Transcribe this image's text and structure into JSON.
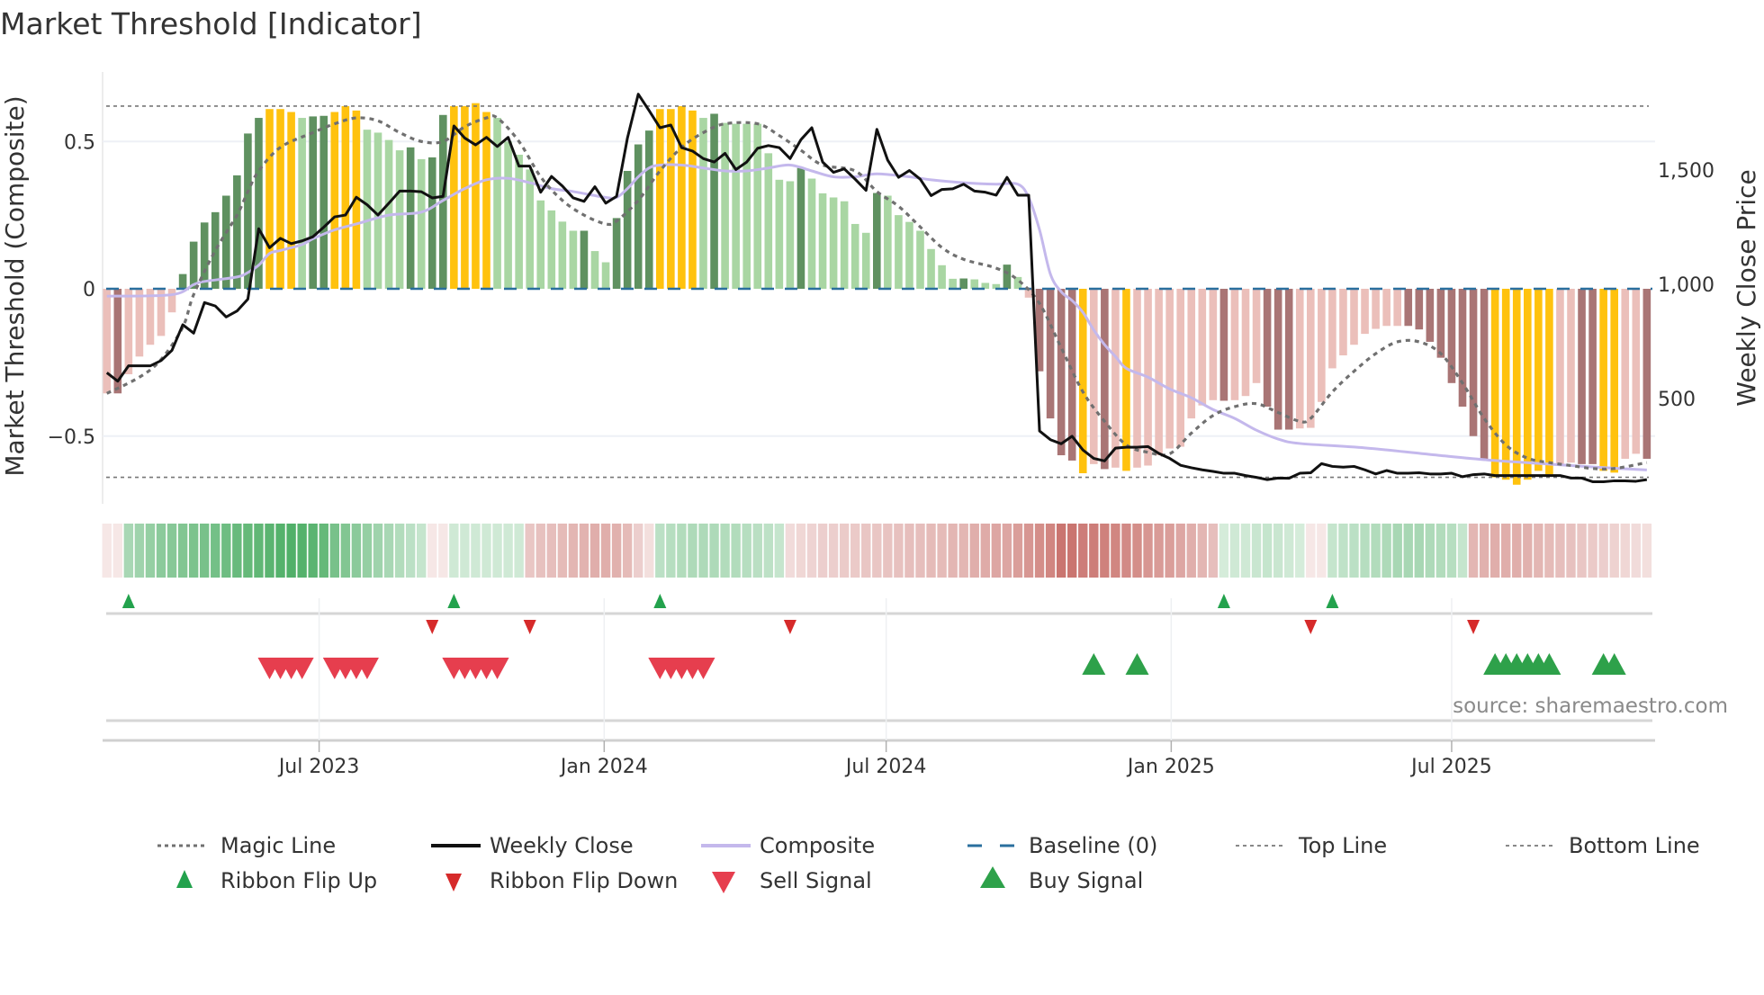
{
  "chart_data": {
    "type": "bar",
    "title": "Market Threshold [Indicator]",
    "ylabel": "Market Threshold (Composite)",
    "y2label": "Weekly Close Price",
    "ylim": [
      -0.74,
      0.74
    ],
    "y2lim": [
      0,
      2000
    ],
    "yticks": [
      {
        "v": 0.5,
        "label": "0.5"
      },
      {
        "v": 0,
        "label": "0"
      },
      {
        "v": -0.5,
        "label": "−0.5"
      }
    ],
    "y2ticks": [
      {
        "v": 1500,
        "label": "1,500"
      },
      {
        "v": 1000,
        "label": "1,000"
      },
      {
        "v": 500,
        "label": "500"
      }
    ],
    "start_date": "2023-02-14",
    "frequency": "weekly",
    "xticks": [
      {
        "date": "2023-07-01",
        "label": "Jul 2023"
      },
      {
        "date": "2024-01-01",
        "label": "Jan 2024"
      },
      {
        "date": "2024-07-01",
        "label": "Jul 2024"
      },
      {
        "date": "2025-01-01",
        "label": "Jan 2025"
      },
      {
        "date": "2025-07-01",
        "label": "Jul 2025"
      }
    ],
    "top_line": 0.62,
    "bottom_line": -0.64,
    "baseline": 0,
    "composite_bars": [
      -0.355,
      -0.355,
      -0.29,
      -0.23,
      -0.19,
      -0.16,
      -0.08,
      0.05,
      0.16,
      0.225,
      0.26,
      0.316,
      0.385,
      0.527,
      0.58,
      0.61,
      0.61,
      0.6,
      0.58,
      0.585,
      0.587,
      0.6,
      0.62,
      0.605,
      0.54,
      0.53,
      0.505,
      0.47,
      0.48,
      0.44,
      0.446,
      0.59,
      0.62,
      0.62,
      0.63,
      0.6,
      0.58,
      0.5,
      0.455,
      0.405,
      0.3,
      0.266,
      0.228,
      0.197,
      0.197,
      0.128,
      0.09,
      0.24,
      0.4,
      0.49,
      0.537,
      0.61,
      0.61,
      0.62,
      0.605,
      0.58,
      0.594,
      0.563,
      0.56,
      0.56,
      0.56,
      0.46,
      0.37,
      0.365,
      0.41,
      0.374,
      0.324,
      0.31,
      0.297,
      0.22,
      0.19,
      0.325,
      0.316,
      0.25,
      0.227,
      0.197,
      0.135,
      0.08,
      0.034,
      0.035,
      0.032,
      0.02,
      0.016,
      0.082,
      0.04,
      -0.03,
      -0.28,
      -0.44,
      -0.565,
      -0.583,
      -0.626,
      -0.595,
      -0.612,
      -0.607,
      -0.618,
      -0.607,
      -0.6,
      -0.565,
      -0.542,
      -0.536,
      -0.44,
      -0.396,
      -0.378,
      -0.38,
      -0.378,
      -0.364,
      -0.32,
      -0.4,
      -0.478,
      -0.478,
      -0.474,
      -0.472,
      -0.384,
      -0.27,
      -0.226,
      -0.19,
      -0.153,
      -0.136,
      -0.126,
      -0.126,
      -0.126,
      -0.138,
      -0.18,
      -0.234,
      -0.32,
      -0.4,
      -0.5,
      -0.583,
      -0.64,
      -0.648,
      -0.665,
      -0.648,
      -0.618,
      -0.63,
      -0.595,
      -0.59,
      -0.595,
      -0.595,
      -0.618,
      -0.624,
      -0.577,
      -0.56,
      -0.577
    ],
    "bar_class": [
      "p",
      "dr",
      "p",
      "p",
      "p",
      "p",
      "p",
      "dg",
      "dg",
      "dg",
      "dg",
      "dg",
      "dg",
      "dg",
      "dg",
      "y",
      "y",
      "y",
      "lg",
      "dg",
      "dg",
      "y",
      "y",
      "y",
      "lg",
      "lg",
      "lg",
      "lg",
      "dg",
      "lg",
      "dg",
      "dg",
      "y",
      "y",
      "y",
      "y",
      "lg",
      "lg",
      "lg",
      "lg",
      "lg",
      "lg",
      "lg",
      "lg",
      "dg",
      "lg",
      "lg",
      "dg",
      "dg",
      "dg",
      "dg",
      "y",
      "y",
      "y",
      "y",
      "lg",
      "dg",
      "lg",
      "lg",
      "lg",
      "lg",
      "lg",
      "lg",
      "lg",
      "dg",
      "lg",
      "lg",
      "lg",
      "lg",
      "lg",
      "lg",
      "dg",
      "lg",
      "lg",
      "lg",
      "lg",
      "lg",
      "lg",
      "lg",
      "dg",
      "lg",
      "lg",
      "lg",
      "dg",
      "lg",
      "p",
      "dr",
      "dr",
      "dr",
      "dr",
      "y",
      "p",
      "dr",
      "p",
      "y",
      "p",
      "p",
      "p",
      "p",
      "p",
      "p",
      "p",
      "p",
      "dr",
      "p",
      "p",
      "p",
      "dr",
      "dr",
      "dr",
      "p",
      "p",
      "p",
      "p",
      "p",
      "p",
      "p",
      "p",
      "p",
      "p",
      "dr",
      "dr",
      "dr",
      "dr",
      "dr",
      "dr",
      "dr",
      "dr",
      "y",
      "y",
      "y",
      "y",
      "y",
      "y",
      "p",
      "p",
      "dr",
      "dr",
      "y",
      "y",
      "p",
      "p",
      "dr"
    ],
    "bar_colors": {
      "dg": "#5f9160",
      "lg": "#a9d6a3",
      "y": "#ffc20e",
      "p": "#ebbfba",
      "dr": "#a97575"
    },
    "weekly_close": [
      613,
      576,
      643,
      643,
      643,
      666,
      711,
      823,
      786,
      920,
      905,
      857,
      883,
      935,
      1243,
      1160,
      1201,
      1178,
      1190,
      1208,
      1250,
      1295,
      1303,
      1381,
      1348,
      1303,
      1355,
      1408,
      1408,
      1405,
      1378,
      1385,
      1693,
      1640,
      1610,
      1643,
      1603,
      1643,
      1517,
      1517,
      1403,
      1472,
      1430,
      1378,
      1363,
      1427,
      1355,
      1385,
      1640,
      1832,
      1760,
      1685,
      1697,
      1598,
      1583,
      1550,
      1535,
      1573,
      1502,
      1535,
      1595,
      1607,
      1598,
      1550,
      1633,
      1685,
      1535,
      1490,
      1505,
      1460,
      1411,
      1678,
      1543,
      1468,
      1498,
      1460,
      1388,
      1415,
      1418,
      1438,
      1408,
      1403,
      1390,
      1468,
      1390,
      1390,
      358,
      320,
      302,
      335,
      275,
      238,
      227,
      283,
      287,
      287,
      290,
      260,
      238,
      208,
      197,
      188,
      181,
      173,
      173,
      163,
      155,
      145,
      152,
      151,
      173,
      175,
      215,
      203,
      200,
      203,
      188,
      170,
      185,
      173,
      173,
      175,
      170,
      170,
      173,
      158,
      167,
      170,
      163,
      163,
      163,
      163,
      163,
      163,
      163,
      152,
      152,
      136,
      136,
      140,
      140,
      138,
      145
    ],
    "magic_line": [
      [
        1,
        -0.355
      ],
      [
        4,
        -0.3
      ],
      [
        6,
        -0.24
      ],
      [
        8,
        -0.13
      ],
      [
        9,
        -0.02
      ],
      [
        11,
        0.13
      ],
      [
        13,
        0.25
      ],
      [
        14,
        0.33
      ],
      [
        15,
        0.4
      ],
      [
        17,
        0.48
      ],
      [
        20,
        0.53
      ],
      [
        22,
        0.56
      ],
      [
        24,
        0.58
      ],
      [
        26,
        0.57
      ],
      [
        28,
        0.53
      ],
      [
        30,
        0.5
      ],
      [
        32,
        0.5
      ],
      [
        34,
        0.55
      ],
      [
        36,
        0.58
      ],
      [
        37,
        0.58
      ],
      [
        39,
        0.5
      ],
      [
        41,
        0.38
      ],
      [
        43,
        0.3
      ],
      [
        45,
        0.25
      ],
      [
        47,
        0.22
      ],
      [
        48,
        0.23
      ],
      [
        50,
        0.3
      ],
      [
        52,
        0.4
      ],
      [
        54,
        0.48
      ],
      [
        56,
        0.53
      ],
      [
        58,
        0.56
      ],
      [
        61,
        0.56
      ],
      [
        63,
        0.52
      ],
      [
        65,
        0.47
      ],
      [
        67,
        0.42
      ],
      [
        70,
        0.4
      ],
      [
        72,
        0.33
      ],
      [
        74,
        0.28
      ],
      [
        76,
        0.21
      ],
      [
        78,
        0.14
      ],
      [
        80,
        0.1
      ],
      [
        83,
        0.07
      ],
      [
        85,
        0.03
      ],
      [
        87,
        -0.05
      ],
      [
        89,
        -0.2
      ],
      [
        91,
        -0.35
      ],
      [
        93,
        -0.45
      ],
      [
        95,
        -0.53
      ],
      [
        97,
        -0.555
      ],
      [
        99,
        -0.56
      ],
      [
        101,
        -0.49
      ],
      [
        103,
        -0.43
      ],
      [
        105,
        -0.4
      ],
      [
        107,
        -0.39
      ],
      [
        109,
        -0.42
      ],
      [
        111,
        -0.45
      ],
      [
        112,
        -0.44
      ],
      [
        114,
        -0.35
      ],
      [
        116,
        -0.28
      ],
      [
        118,
        -0.22
      ],
      [
        120,
        -0.18
      ],
      [
        122,
        -0.18
      ],
      [
        124,
        -0.22
      ],
      [
        126,
        -0.32
      ],
      [
        128,
        -0.44
      ],
      [
        130,
        -0.53
      ],
      [
        132,
        -0.575
      ],
      [
        134,
        -0.59
      ],
      [
        136,
        -0.6
      ],
      [
        138,
        -0.61
      ],
      [
        140,
        -0.61
      ],
      [
        143,
        -0.59
      ]
    ],
    "composite_line": [
      [
        1,
        -0.025
      ],
      [
        7,
        -0.02
      ],
      [
        9,
        0.014
      ],
      [
        10,
        0.025
      ],
      [
        13,
        0.04
      ],
      [
        14,
        0.055
      ],
      [
        15,
        0.08
      ],
      [
        16,
        0.12
      ],
      [
        17,
        0.13
      ],
      [
        19,
        0.15
      ],
      [
        20,
        0.17
      ],
      [
        22,
        0.2
      ],
      [
        24,
        0.22
      ],
      [
        27,
        0.25
      ],
      [
        30,
        0.26
      ],
      [
        32,
        0.3
      ],
      [
        34,
        0.34
      ],
      [
        36,
        0.37
      ],
      [
        38,
        0.375
      ],
      [
        40,
        0.36
      ],
      [
        42,
        0.34
      ],
      [
        44,
        0.33
      ],
      [
        47,
        0.31
      ],
      [
        48,
        0.31
      ],
      [
        49,
        0.34
      ],
      [
        50,
        0.38
      ],
      [
        51,
        0.41
      ],
      [
        52,
        0.42
      ],
      [
        54,
        0.42
      ],
      [
        56,
        0.41
      ],
      [
        58,
        0.4
      ],
      [
        60,
        0.4
      ],
      [
        62,
        0.41
      ],
      [
        64,
        0.42
      ],
      [
        66,
        0.4
      ],
      [
        68,
        0.38
      ],
      [
        70,
        0.38
      ],
      [
        72,
        0.39
      ],
      [
        75,
        0.38
      ],
      [
        77,
        0.37
      ],
      [
        80,
        0.36
      ],
      [
        83,
        0.355
      ],
      [
        85,
        0.355
      ],
      [
        86,
        0.31
      ],
      [
        87,
        0.2
      ],
      [
        88,
        0.05
      ],
      [
        89,
        -0.01
      ],
      [
        90,
        -0.04
      ],
      [
        91,
        -0.08
      ],
      [
        92,
        -0.14
      ],
      [
        93,
        -0.19
      ],
      [
        94,
        -0.23
      ],
      [
        95,
        -0.27
      ],
      [
        97,
        -0.3
      ],
      [
        99,
        -0.34
      ],
      [
        101,
        -0.37
      ],
      [
        103,
        -0.41
      ],
      [
        105,
        -0.44
      ],
      [
        107,
        -0.48
      ],
      [
        109,
        -0.51
      ],
      [
        111,
        -0.525
      ],
      [
        117,
        -0.54
      ],
      [
        124,
        -0.566
      ],
      [
        129,
        -0.583
      ],
      [
        134,
        -0.595
      ],
      [
        139,
        -0.607
      ],
      [
        143,
        -0.615
      ]
    ],
    "ribbon": [
      -0.15,
      -0.15,
      0.45,
      0.5,
      0.55,
      0.6,
      0.62,
      0.65,
      0.68,
      0.7,
      0.72,
      0.75,
      0.78,
      0.8,
      0.82,
      0.85,
      0.88,
      0.9,
      0.88,
      0.85,
      0.8,
      0.7,
      0.65,
      0.6,
      0.55,
      0.5,
      0.45,
      0.4,
      0.35,
      0.3,
      -0.15,
      -0.15,
      0.25,
      0.25,
      0.25,
      0.25,
      0.25,
      0.25,
      0.25,
      -0.35,
      -0.38,
      -0.4,
      -0.42,
      -0.45,
      -0.47,
      -0.5,
      -0.5,
      -0.48,
      -0.42,
      -0.3,
      -0.2,
      0.35,
      0.38,
      0.4,
      0.42,
      0.42,
      0.42,
      0.4,
      0.4,
      0.38,
      0.36,
      0.34,
      0.3,
      -0.22,
      -0.25,
      -0.27,
      -0.3,
      -0.3,
      -0.32,
      -0.33,
      -0.35,
      -0.35,
      -0.37,
      -0.38,
      -0.4,
      -0.4,
      -0.42,
      -0.42,
      -0.45,
      -0.45,
      -0.5,
      -0.52,
      -0.55,
      -0.55,
      -0.6,
      -0.65,
      -0.7,
      -0.75,
      -0.85,
      -0.85,
      -0.8,
      -0.8,
      -0.78,
      -0.75,
      -0.72,
      -0.7,
      -0.65,
      -0.62,
      -0.6,
      -0.55,
      -0.5,
      -0.45,
      -0.4,
      0.22,
      0.25,
      0.25,
      0.28,
      0.3,
      0.28,
      0.25,
      0.22,
      -0.15,
      -0.15,
      0.3,
      0.33,
      0.35,
      0.38,
      0.4,
      0.42,
      0.45,
      0.45,
      0.45,
      0.42,
      0.4,
      0.38,
      0.3,
      -0.45,
      -0.48,
      -0.5,
      -0.5,
      -0.5,
      -0.48,
      -0.45,
      -0.42,
      -0.4,
      -0.38,
      -0.35,
      -0.33,
      -0.3,
      -0.28,
      -0.25,
      -0.22,
      -0.2
    ],
    "ribbon_flip_up_weeks": [
      3,
      33,
      52,
      104,
      114
    ],
    "ribbon_flip_down_weeks": [
      31,
      40,
      64,
      112,
      127
    ],
    "sell_signal_weeks": [
      16,
      17,
      18,
      19,
      22,
      23,
      24,
      25,
      33,
      34,
      35,
      36,
      37,
      52,
      53,
      54,
      55,
      56
    ],
    "buy_signal_weeks": [
      92,
      96,
      129,
      130,
      131,
      132,
      133,
      134,
      139,
      140
    ],
    "colors": {
      "magic": "#707070",
      "close": "#111111",
      "composite": "#c4b8ec",
      "baseline": "#2a6f9e",
      "limits": "#777777",
      "flip_up": "#23a24d",
      "flip_down": "#d62a2a",
      "sell": "#e63e4e",
      "buy": "#2ea14a",
      "ribbon_green": "#3ea758",
      "ribbon_red": "#c15d57"
    },
    "legend": [
      {
        "key": "magic",
        "label": "Magic Line"
      },
      {
        "key": "close",
        "label": "Weekly Close"
      },
      {
        "key": "composite",
        "label": "Composite"
      },
      {
        "key": "baseline",
        "label": "Baseline (0)"
      },
      {
        "key": "top",
        "label": "Top Line"
      },
      {
        "key": "bottom",
        "label": "Bottom Line"
      },
      {
        "key": "flip_up",
        "label": "Ribbon Flip Up"
      },
      {
        "key": "flip_down",
        "label": "Ribbon Flip Down"
      },
      {
        "key": "sell",
        "label": "Sell Signal"
      },
      {
        "key": "buy",
        "label": "Buy Signal"
      }
    ],
    "source": "source: sharemaestro.com"
  }
}
